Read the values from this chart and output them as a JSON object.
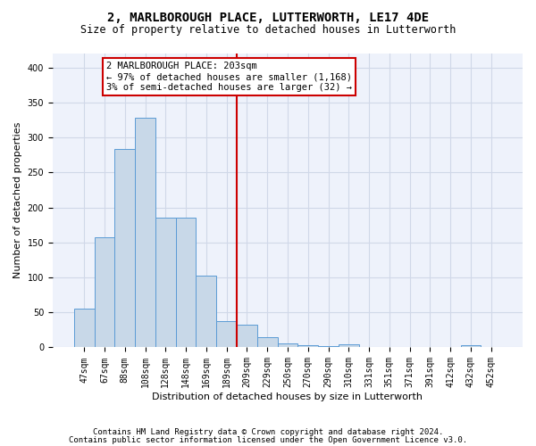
{
  "title": "2, MARLBOROUGH PLACE, LUTTERWORTH, LE17 4DE",
  "subtitle": "Size of property relative to detached houses in Lutterworth",
  "xlabel": "Distribution of detached houses by size in Lutterworth",
  "ylabel": "Number of detached properties",
  "footnote1": "Contains HM Land Registry data © Crown copyright and database right 2024.",
  "footnote2": "Contains public sector information licensed under the Open Government Licence v3.0.",
  "categories": [
    "47sqm",
    "67sqm",
    "88sqm",
    "108sqm",
    "128sqm",
    "148sqm",
    "169sqm",
    "189sqm",
    "209sqm",
    "229sqm",
    "250sqm",
    "270sqm",
    "290sqm",
    "310sqm",
    "331sqm",
    "351sqm",
    "371sqm",
    "391sqm",
    "412sqm",
    "432sqm",
    "452sqm"
  ],
  "values": [
    55,
    158,
    284,
    328,
    185,
    185,
    102,
    38,
    33,
    15,
    6,
    3,
    2,
    4,
    0,
    0,
    0,
    0,
    0,
    3,
    0
  ],
  "bar_color": "#c8d8e8",
  "bar_edge_color": "#5b9bd5",
  "reference_line_index": 8,
  "reference_line_color": "#cc0000",
  "annotation_text": "2 MARLBOROUGH PLACE: 203sqm\n← 97% of detached houses are smaller (1,168)\n3% of semi-detached houses are larger (32) →",
  "annotation_box_color": "#cc0000",
  "ylim": [
    0,
    420
  ],
  "yticks": [
    0,
    50,
    100,
    150,
    200,
    250,
    300,
    350,
    400
  ],
  "grid_color": "#d0d8e8",
  "background_color": "#eef2fb",
  "title_fontsize": 10,
  "subtitle_fontsize": 8.5,
  "tick_fontsize": 7,
  "ylabel_fontsize": 8,
  "xlabel_fontsize": 8,
  "annotation_fontsize": 7.5,
  "footnote_fontsize": 6.5
}
